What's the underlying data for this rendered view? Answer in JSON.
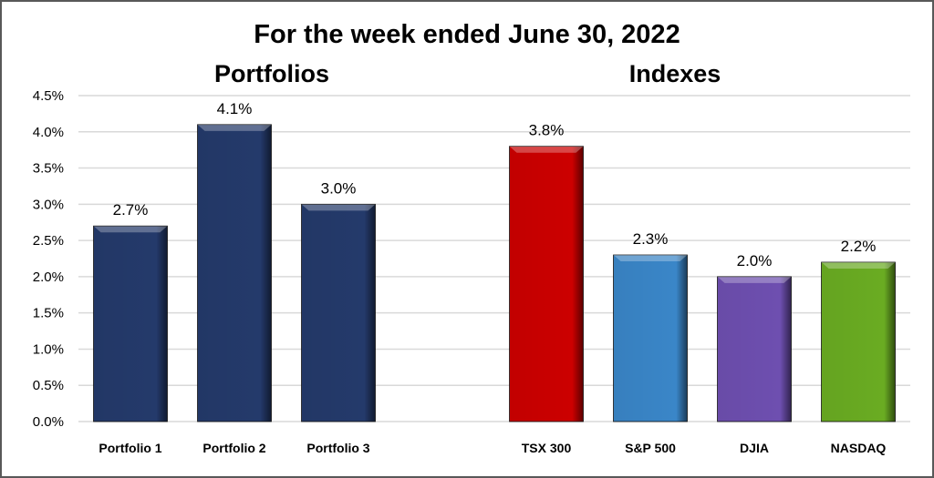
{
  "chart_data": {
    "type": "bar",
    "title": "For the week ended June 30, 2022",
    "group_labels": [
      "Portfolios",
      "Indexes"
    ],
    "categories": [
      "Portfolio 1",
      "Portfolio 2",
      "Portfolio 3",
      "",
      "TSX 300",
      "S&P 500",
      "DJIA",
      "NASDAQ"
    ],
    "values": [
      2.7,
      4.1,
      3.0,
      null,
      3.8,
      2.3,
      2.0,
      2.2
    ],
    "data_labels": [
      "2.7%",
      "4.1%",
      "3.0%",
      "",
      "3.8%",
      "2.3%",
      "2.0%",
      "2.2%"
    ],
    "colors": [
      "#243a6b",
      "#243a6b",
      "#243a6b",
      "",
      "#cc0000",
      "#3a86c8",
      "#6e4fb0",
      "#6aac22"
    ],
    "ylim": [
      0,
      4.5
    ],
    "yticks": [
      "0.0%",
      "0.5%",
      "1.0%",
      "1.5%",
      "2.0%",
      "2.5%",
      "3.0%",
      "3.5%",
      "4.0%",
      "4.5%"
    ],
    "grid": true,
    "legend": "none"
  }
}
